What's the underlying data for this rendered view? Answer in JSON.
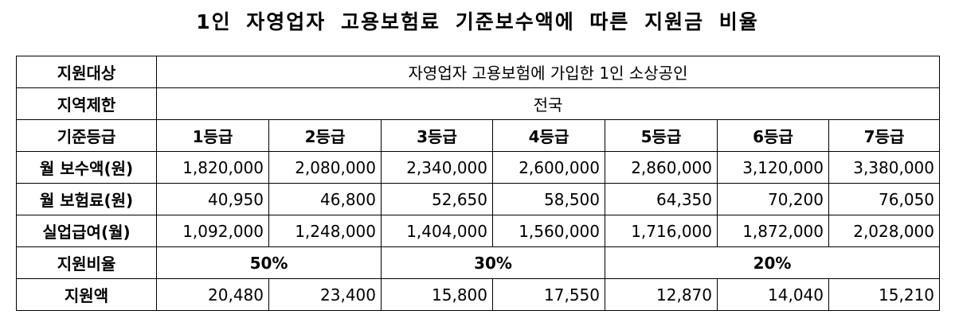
{
  "title": "1인 자영업자 고용보험료 기준보수액에 따른 지원금 비율",
  "table": {
    "target": {
      "label": "지원대상",
      "value": "자영업자 고용보험에 가입한 1인 소상공인"
    },
    "region": {
      "label": "지역제한",
      "value": "전국"
    },
    "grade": {
      "label": "기준등급",
      "values": [
        "1등급",
        "2등급",
        "3등급",
        "4등급",
        "5등급",
        "6등급",
        "7등급"
      ]
    },
    "monthly_pay": {
      "label": "월 보수액(원)",
      "values": [
        "1,820,000",
        "2,080,000",
        "2,340,000",
        "2,600,000",
        "2,860,000",
        "3,120,000",
        "3,380,000"
      ]
    },
    "monthly_premium": {
      "label": "월 보험료(원)",
      "values": [
        "40,950",
        "46,800",
        "52,650",
        "58,500",
        "64,350",
        "70,200",
        "76,050"
      ]
    },
    "unemployment_benefit": {
      "label": "실업급여(월)",
      "values": [
        "1,092,000",
        "1,248,000",
        "1,404,000",
        "1,560,000",
        "1,716,000",
        "1,872,000",
        "2,028,000"
      ]
    },
    "support_rate": {
      "label": "지원비율",
      "values": [
        "50%",
        "30%",
        "20%"
      ]
    },
    "support_amount": {
      "label": "지원액",
      "values": [
        "20,480",
        "23,400",
        "15,800",
        "17,550",
        "12,870",
        "14,040",
        "15,210"
      ]
    }
  }
}
